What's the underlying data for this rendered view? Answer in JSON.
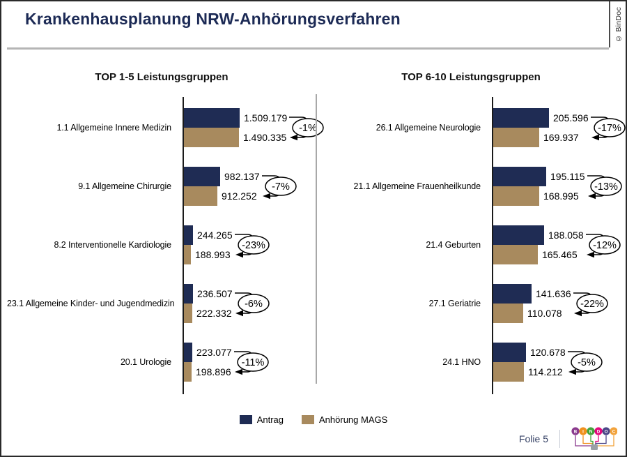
{
  "page": {
    "title": "Krankenhausplanung NRW-Anhörungsverfahren",
    "copyright_vertical": "© BinDoc",
    "footer": {
      "slide_label": "Folie 5",
      "brand": "BinDoc"
    }
  },
  "legend": {
    "items": [
      {
        "label": "Antrag",
        "color": "#1f2c54"
      },
      {
        "label": "Anhörung MAGS",
        "color": "#a88a5e"
      }
    ]
  },
  "chart_data": [
    {
      "type": "bar",
      "orientation": "horizontal",
      "title": "TOP 1-5 Leistungsgruppen",
      "series": [
        "Antrag",
        "Anhörung MAGS"
      ],
      "value_axis": "hidden, values shown as data labels (German thousands format)",
      "groups": [
        {
          "label": "1.1 Allgemeine Innere Medizin",
          "values": [
            1509179,
            1490335
          ],
          "value_labels": [
            "1.509.179",
            "1.490.335"
          ],
          "delta": "-1%"
        },
        {
          "label": "9.1 Allgemeine Chirurgie",
          "values": [
            982137,
            912252
          ],
          "value_labels": [
            "982.137",
            "912.252"
          ],
          "delta": "-7%"
        },
        {
          "label": "8.2 Interventionelle Kardiologie",
          "values": [
            244265,
            188993
          ],
          "value_labels": [
            "244.265",
            "188.993"
          ],
          "delta": "-23%"
        },
        {
          "label": "23.1 Allgemeine Kinder- und Jugendmedizin",
          "values": [
            236507,
            222332
          ],
          "value_labels": [
            "236.507",
            "222.332"
          ],
          "delta": "-6%"
        },
        {
          "label": "20.1 Urologie",
          "values": [
            223077,
            198896
          ],
          "value_labels": [
            "223.077",
            "198.896"
          ],
          "delta": "-11%"
        }
      ]
    },
    {
      "type": "bar",
      "orientation": "horizontal",
      "title": "TOP 6-10 Leistungsgruppen",
      "series": [
        "Antrag",
        "Anhörung MAGS"
      ],
      "value_axis": "hidden, values shown as data labels (German thousands format)",
      "groups": [
        {
          "label": "26.1 Allgemeine Neurologie",
          "values": [
            205596,
            169937
          ],
          "value_labels": [
            "205.596",
            "169.937"
          ],
          "delta": "-17%"
        },
        {
          "label": "21.1 Allgemeine Frauenheilkunde",
          "values": [
            195115,
            168995
          ],
          "value_labels": [
            "195.115",
            "168.995"
          ],
          "delta": "-13%"
        },
        {
          "label": "21.4 Geburten",
          "values": [
            188058,
            165465
          ],
          "value_labels": [
            "188.058",
            "165.465"
          ],
          "delta": "-12%"
        },
        {
          "label": "27.1 Geriatrie",
          "values": [
            141636,
            110078
          ],
          "value_labels": [
            "141.636",
            "110.078"
          ],
          "delta": "-22%"
        },
        {
          "label": "24.1 HNO",
          "values": [
            120678,
            114212
          ],
          "value_labels": [
            "120.678",
            "114.212"
          ],
          "delta": "-5%"
        }
      ]
    }
  ],
  "logo": {
    "letters": [
      "B",
      "I",
      "N",
      "D",
      "O",
      "C"
    ],
    "colors": [
      "#8a3a8e",
      "#f0911e",
      "#43a43c",
      "#e2097d",
      "#4b4587",
      "#f2a33c"
    ],
    "base_color": "#9aa0a6"
  }
}
